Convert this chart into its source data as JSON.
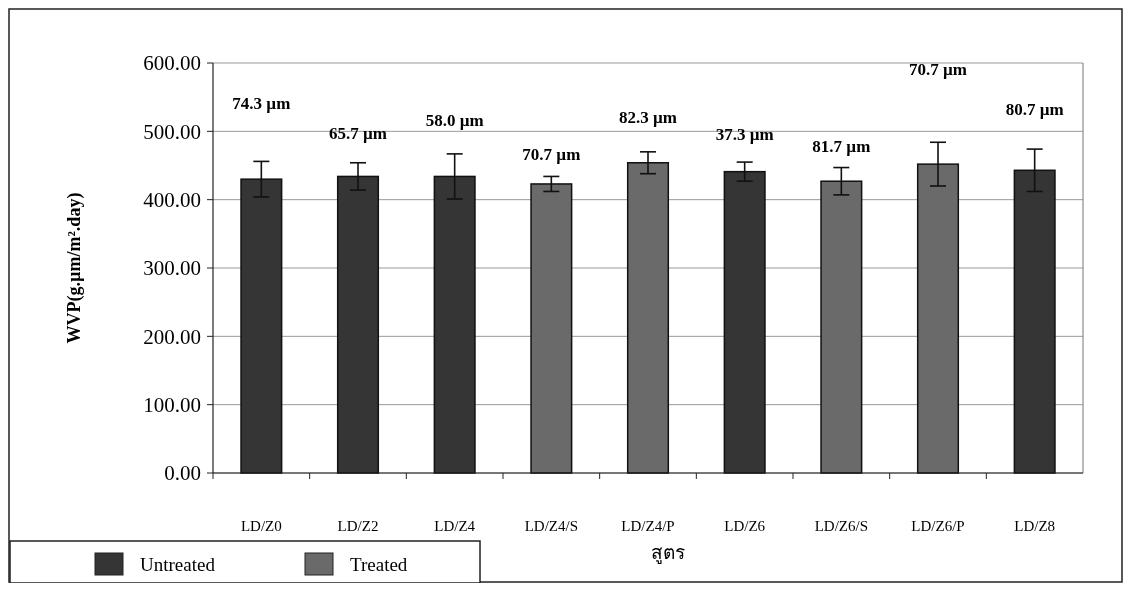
{
  "chart_data": {
    "type": "bar",
    "xlabel": "สูตร",
    "ylabel": "WVP(g.µm/m².day)",
    "categories": [
      "LD/Z0",
      "LD/Z2",
      "LD/Z4",
      "LD/Z4/S",
      "LD/Z4/P",
      "LD/Z6",
      "LD/Z6/S",
      "LD/Z6/P",
      "LD/Z8"
    ],
    "series": [
      {
        "name": "Untreated",
        "color": "#353535",
        "values": [
          430,
          434,
          434,
          null,
          null,
          441,
          null,
          null,
          443
        ],
        "errors": [
          26,
          20,
          33,
          null,
          null,
          14,
          null,
          null,
          31
        ]
      },
      {
        "name": "Treated",
        "color": "#6a6a6a",
        "values": [
          null,
          null,
          null,
          423,
          454,
          null,
          427,
          452,
          null
        ],
        "errors": [
          null,
          null,
          null,
          11,
          16,
          null,
          20,
          32,
          null
        ]
      }
    ],
    "ylim": [
      0,
      600
    ],
    "yticks": [
      {
        "value": 0,
        "label": "0.00"
      },
      {
        "value": 100,
        "label": "100.00"
      },
      {
        "value": 200,
        "label": "200.00"
      },
      {
        "value": 300,
        "label": "300.00"
      },
      {
        "value": 400,
        "label": "400.00"
      },
      {
        "value": 500,
        "label": "500.00"
      },
      {
        "value": 600,
        "label": "600.00"
      }
    ],
    "grid": "y",
    "legend": "bottom left",
    "annotations": [
      "74.3 µm",
      "65.7 µm",
      "58.0 µm",
      "70.7 µm",
      "82.3 µm",
      "37.3 µm",
      "81.7 µm",
      "70.7 µm",
      "80.7 µm"
    ]
  }
}
